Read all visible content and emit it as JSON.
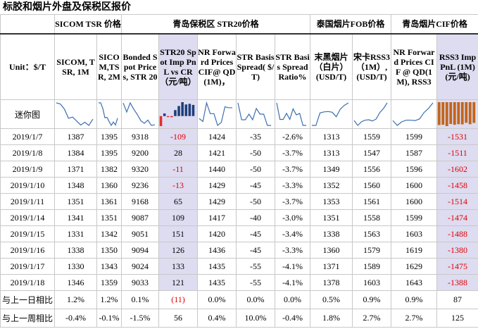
{
  "title": "标胶和烟片外盘及保税区报价",
  "table": {
    "group_headers": [
      "SICOM TSR 价格",
      "青岛保税区 STR20价格",
      "泰国烟片FOB价格",
      "青岛烟片CIF价格"
    ],
    "columns": [
      "Unit：$/T",
      "SICOM, TSR, 1M",
      "SICOM,TSR, 2M",
      "Bonded Spot Prices, STR 20",
      "STR20 Spot Imp PnL vs CR （元/吨）",
      "NR Forward Prices CIF@ QD (1M)，",
      "STR Basis Spread( $/T)",
      "STR Basis Spread Ratio%",
      "末黑烟片（白片）(USD/T)",
      "宋卡RSS3（1M）,(USD/T)",
      "NR Forward Prices CIF @ QD(1M), RSS3",
      "RSS3 Imp PnL (1M) (元/吨)"
    ],
    "mini_label": "迷你图",
    "rows": [
      [
        "2019/1/7",
        "1387",
        "1395",
        "9318",
        "-109",
        "1424",
        "-35",
        "-2.6%",
        "1313",
        "1559",
        "1599",
        "-1531"
      ],
      [
        "2019/1/8",
        "1384",
        "1395",
        "9200",
        "28",
        "1421",
        "-50",
        "-3.7%",
        "1313",
        "1547",
        "1587",
        "-1511"
      ],
      [
        "2019/1/9",
        "1371",
        "1382",
        "9320",
        "-11",
        "1440",
        "-50",
        "-3.7%",
        "1349",
        "1556",
        "1596",
        "-1602"
      ],
      [
        "2019/1/10",
        "1348",
        "1360",
        "9236",
        "-13",
        "1429",
        "-45",
        "-3.3%",
        "1352",
        "1560",
        "1600",
        "-1458"
      ],
      [
        "2019/1/11",
        "1351",
        "1361",
        "9168",
        "65",
        "1429",
        "-50",
        "-3.7%",
        "1353",
        "1561",
        "1600",
        "-1514"
      ],
      [
        "2019/1/14",
        "1341",
        "1351",
        "9087",
        "109",
        "1417",
        "-40",
        "-3.0%",
        "1351",
        "1558",
        "1599",
        "-1474"
      ],
      [
        "2019/1/15",
        "1331",
        "1342",
        "9051",
        "151",
        "1420",
        "-45",
        "-3.4%",
        "1338",
        "1563",
        "1603",
        "-1488"
      ],
      [
        "2019/1/16",
        "1338",
        "1350",
        "9094",
        "126",
        "1436",
        "-45",
        "-3.3%",
        "1360",
        "1579",
        "1619",
        "-1380"
      ],
      [
        "2019/1/17",
        "1330",
        "1343",
        "9024",
        "133",
        "1435",
        "-55",
        "-4.1%",
        "1371",
        "1589",
        "1629",
        "-1475"
      ],
      [
        "2019/1/18",
        "1346",
        "1359",
        "9033",
        "121",
        "1435",
        "-55",
        "-4.1%",
        "1378",
        "1603",
        "1643",
        "-1388"
      ]
    ],
    "change_rows": [
      [
        "与上一日相比",
        "1.2%",
        "1.2%",
        "0.1%",
        "(11)",
        "0.0%",
        "0.0%",
        "0.0%",
        "0.5%",
        "0.9%",
        "0.9%",
        "87"
      ],
      [
        "与上一周相比",
        "-0.4%",
        "-0.1%",
        "-1.5%",
        "56",
        "0.4%",
        "10.0%",
        "-0.4%",
        "1.8%",
        "2.7%",
        "2.7%",
        "125"
      ]
    ]
  }
}
